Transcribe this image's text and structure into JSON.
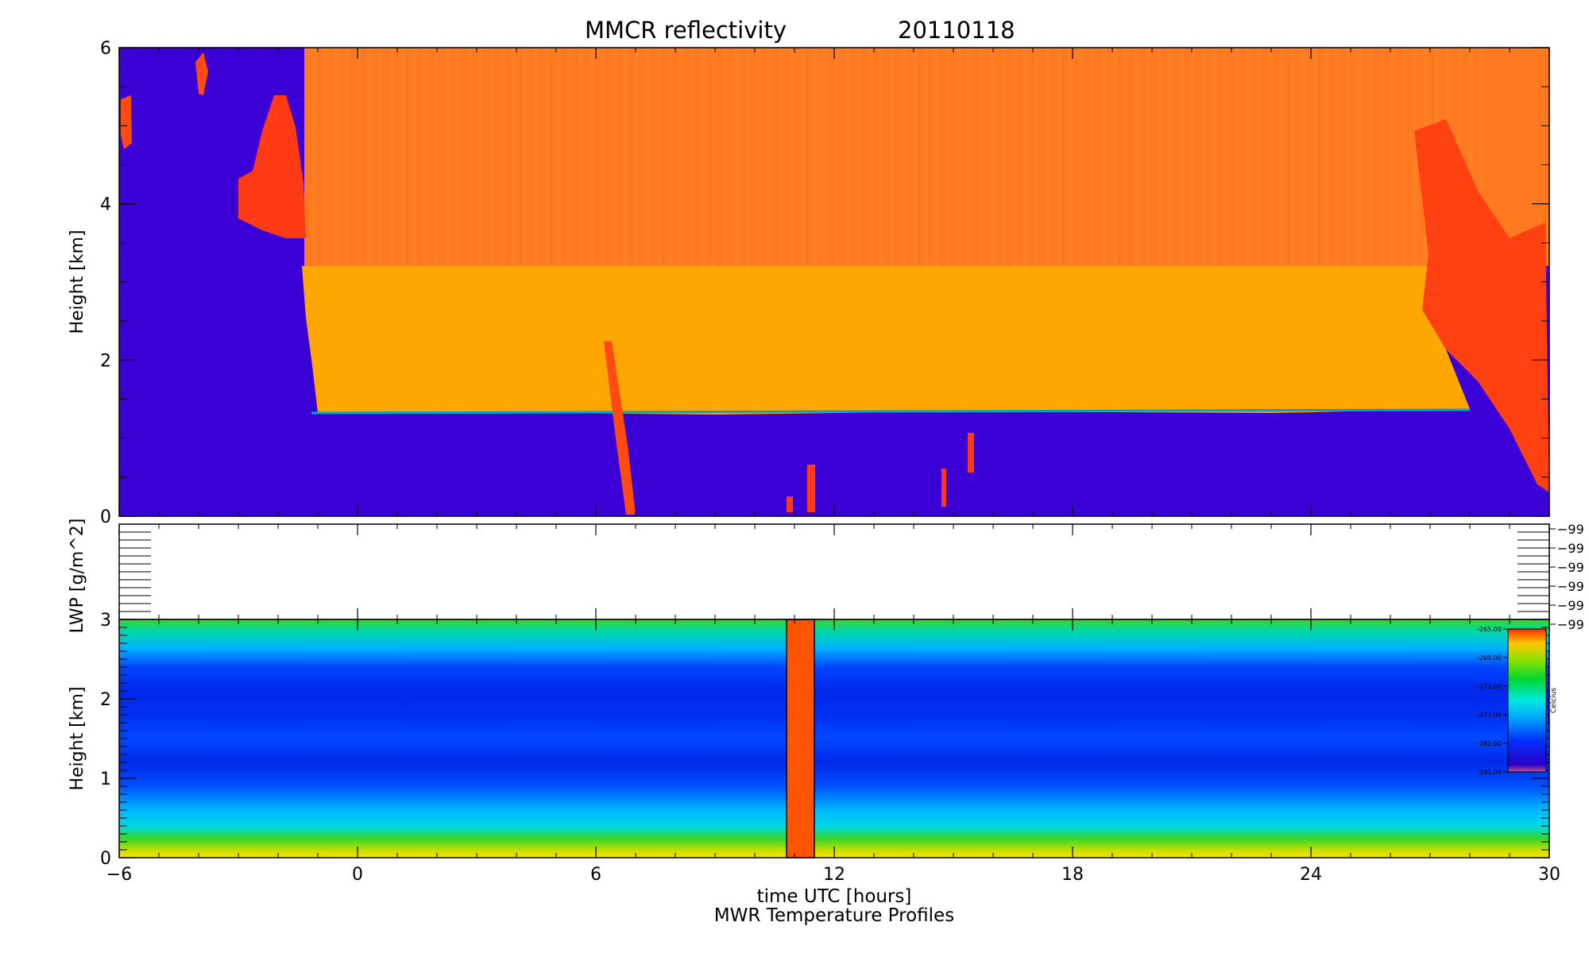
{
  "chart_data": [
    {
      "type": "heatmap",
      "title": "MMCR reflectivity",
      "date": "20110118",
      "xlabel": "",
      "ylabel": "Height [km]",
      "x_ticks": [
        "-6",
        "0",
        "6",
        "12",
        "18",
        "24",
        "30"
      ],
      "y_ticks": [
        "0",
        "2",
        "4",
        "6"
      ],
      "xlim": [
        -6,
        30
      ],
      "ylim": [
        0,
        6
      ],
      "colors": {
        "background": "#3a00d6",
        "upper_layer": "#ff7a1e",
        "mid_layer": "#ffa600",
        "echo": "#ff3a14"
      },
      "layers": [
        {
          "x": [
            -1.3,
            30
          ],
          "y": [
            3.2,
            6.0
          ]
        },
        {
          "x": [
            -1.3,
            28.5
          ],
          "y": [
            1.4,
            3.2
          ]
        }
      ]
    },
    {
      "type": "line",
      "xlabel": "",
      "ylabel": "LWP [g/m^2]",
      "right_tick_labels": [
        "-99",
        "-99",
        "-99",
        "-99",
        "-99",
        "-99"
      ]
    },
    {
      "type": "heatmap",
      "xlabel": "time UTC [hours]",
      "ylabel": "Height [km]",
      "x_ticks": [
        "-6",
        "0",
        "6",
        "12",
        "18",
        "24",
        "30"
      ],
      "y_ticks": [
        "0",
        "1",
        "2",
        "3"
      ],
      "xlim": [
        -6,
        30
      ],
      "ylim": [
        0,
        3
      ],
      "missing_band": {
        "x": [
          10.8,
          11.5
        ],
        "color": "#ff5500"
      },
      "colorbar": {
        "label": "Celcius",
        "tick_labels": [
          "-265.00",
          "-269.00",
          "-273.00",
          "-277.00",
          "-281.00",
          "-285.00"
        ]
      }
    }
  ],
  "footer_title": "MWR Temperature Profiles"
}
